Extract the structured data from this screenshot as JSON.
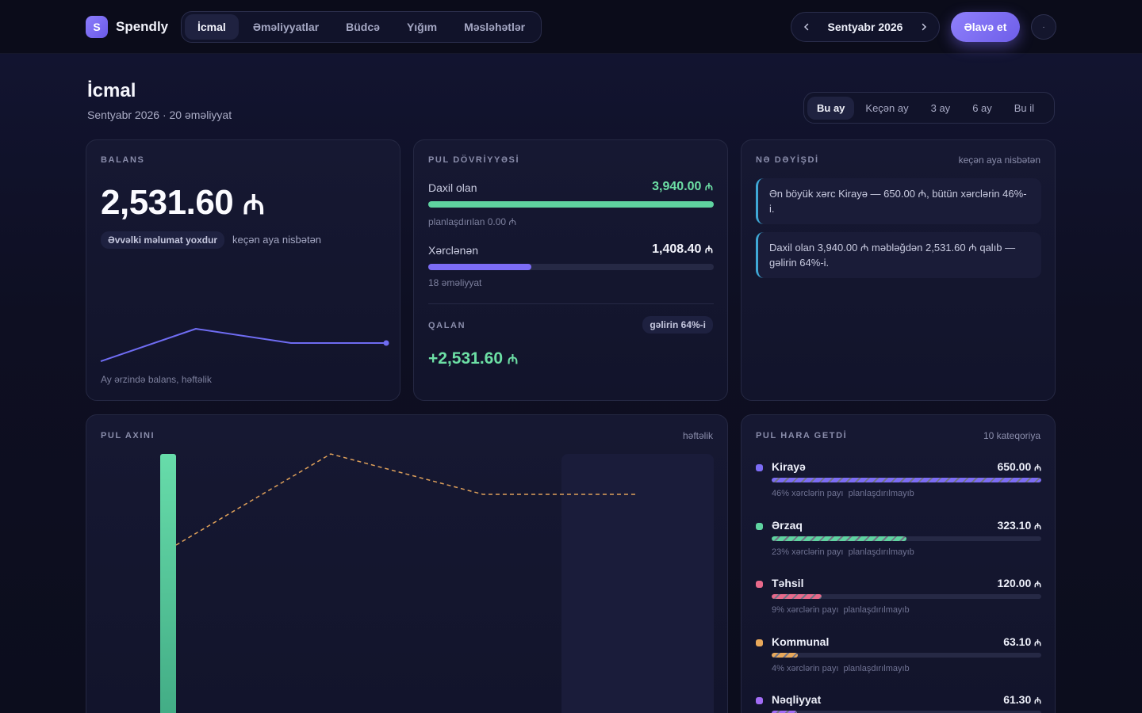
{
  "brand": {
    "logo_letter": "S",
    "name": "Spendly"
  },
  "nav": {
    "items": [
      {
        "label": "İcmal",
        "active": true
      },
      {
        "label": "Əməliyyatlar",
        "active": false
      },
      {
        "label": "Büdcə",
        "active": false
      },
      {
        "label": "Yığım",
        "active": false
      },
      {
        "label": "Məsləhətlər",
        "active": false
      }
    ]
  },
  "month_picker": {
    "label": "Sentyabr 2026",
    "prev_icon": "chevron-left-icon",
    "next_icon": "chevron-right-icon"
  },
  "add_button": {
    "label": "Əlavə et"
  },
  "avatar": {
    "glyph": "·"
  },
  "page": {
    "title": "İcmal",
    "subtitle": "Sentyabr 2026 · 20 əməliyyat"
  },
  "period_tabs": [
    {
      "label": "Bu ay",
      "active": true
    },
    {
      "label": "Keçən ay",
      "active": false
    },
    {
      "label": "3 ay",
      "active": false
    },
    {
      "label": "6 ay",
      "active": false
    },
    {
      "label": "Bu il",
      "active": false
    }
  ],
  "balance": {
    "label": "BALANS",
    "value": "2,531.60",
    "currency": "₼",
    "chip": "Əvvəlki məlumat yoxdur",
    "compare": "keçən aya nisbətən",
    "footer": "Ay ərzində balans, həftəlik",
    "color": "#6f6cf2"
  },
  "cashflow": {
    "label": "PUL DÖVRİYYƏSİ",
    "income": {
      "label": "Daxil olan",
      "value": "3,940.00",
      "currency": "₼",
      "sub": "planlaşdırılan 0.00 ₼",
      "fill": 1.0,
      "color": "#5fd3a0"
    },
    "expense": {
      "label": "Xərclənən",
      "value": "1,408.40",
      "currency": "₼",
      "sub": "18 əməliyyat",
      "fill": 0.36,
      "color": "#7c6cf5"
    },
    "remaining": {
      "label": "QALAN",
      "value": "+2,531.60",
      "currency": "₼",
      "chip": "gəlirin 64%-i"
    }
  },
  "changes": {
    "label": "NƏ DƏYİŞDİ",
    "meta": "keçən aya nisbətən",
    "items": [
      "Ən böyük xərc Kirayə — 650.00 ₼, bütün xərclərin 46%-i.",
      "Daxil olan 3,940.00 ₼ məbləğdən 2,531.60 ₼ qalıb — gəlirin 64%-i."
    ]
  },
  "pul_axini": {
    "label": "PUL AXINI",
    "meta": "həftəlik",
    "income_color": "#5fd3a0",
    "expense_line_color": "#e0a15a"
  },
  "categories": {
    "label": "PUL HARA GETDİ",
    "meta": "10 kateqoriya",
    "items": [
      {
        "name": "Kirayə",
        "amount": "650.00",
        "currency": "₼",
        "share": "46% xərclərin payı",
        "plan": "planlaşdırılmayıb",
        "fill": 1.0,
        "color": "#7c6cf5"
      },
      {
        "name": "Ərzaq",
        "amount": "323.10",
        "currency": "₼",
        "share": "23% xərclərin payı",
        "plan": "planlaşdırılmayıb",
        "fill": 0.5,
        "color": "#5fd3a0"
      },
      {
        "name": "Təhsil",
        "amount": "120.00",
        "currency": "₼",
        "share": "9% xərclərin payı",
        "plan": "planlaşdırılmayıb",
        "fill": 0.185,
        "color": "#e8698a"
      },
      {
        "name": "Kommunal",
        "amount": "63.10",
        "currency": "₼",
        "share": "4% xərclərin payı",
        "plan": "planlaşdırılmayıb",
        "fill": 0.097,
        "color": "#e8a85a"
      },
      {
        "name": "Nəqliyyat",
        "amount": "61.30",
        "currency": "₼",
        "share": "",
        "plan": "",
        "fill": 0.094,
        "color": "#a26cf5"
      }
    ]
  }
}
